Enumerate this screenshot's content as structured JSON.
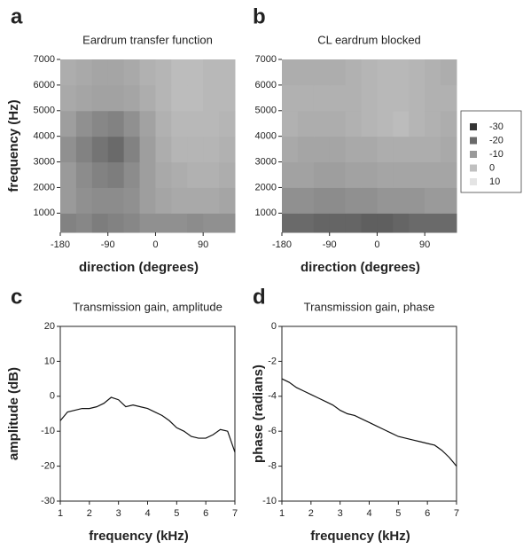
{
  "colorbar": {
    "values": [
      -30,
      -20,
      -10,
      0,
      10
    ],
    "colors": [
      "#353535",
      "#6a6a6a",
      "#9a9a9a",
      "#c0c0c0",
      "#e4e4e4"
    ]
  },
  "chart_data": [
    {
      "type": "heatmap",
      "panel_label": "a",
      "title": "Eardrum transfer function",
      "x_label": "direction (degrees)",
      "y_label": "frequency (Hz)",
      "x": [
        -165,
        -135,
        -105,
        -75,
        -45,
        -15,
        15,
        45,
        75,
        105,
        135
      ],
      "y": [
        500,
        1500,
        2500,
        3500,
        4500,
        5500,
        6500
      ],
      "values": [
        [
          -15,
          -14,
          -16,
          -15,
          -14,
          -12,
          -12,
          -12,
          -13,
          -12,
          -12
        ],
        [
          -10,
          -12,
          -13,
          -13,
          -12,
          -9,
          -7,
          -6,
          -6,
          -6,
          -7
        ],
        [
          -10,
          -13,
          -15,
          -16,
          -13,
          -9,
          -6,
          -5,
          -4,
          -4,
          -5
        ],
        [
          -12,
          -15,
          -18,
          -20,
          -15,
          -9,
          -5,
          -3,
          -3,
          -3,
          -4
        ],
        [
          -9,
          -12,
          -14,
          -15,
          -12,
          -8,
          -4,
          -2,
          -2,
          -2,
          -3
        ],
        [
          -6,
          -7,
          -8,
          -8,
          -7,
          -5,
          -3,
          -1,
          -1,
          -2,
          -2
        ],
        [
          -5,
          -6,
          -7,
          -7,
          -6,
          -4,
          -3,
          -1,
          -1,
          -2,
          -2
        ]
      ],
      "xlim": [
        -180,
        150
      ],
      "xticks": [
        -180,
        -90,
        0,
        90
      ],
      "ylim": [
        250,
        7000
      ],
      "yticks": [
        1000,
        2000,
        3000,
        4000,
        5000,
        6000,
        7000
      ]
    },
    {
      "type": "heatmap",
      "panel_label": "b",
      "title": "CL eardrum blocked",
      "x_label": "direction (degrees)",
      "x": [
        -165,
        -135,
        -105,
        -75,
        -45,
        -15,
        15,
        45,
        75,
        105,
        135
      ],
      "y": [
        500,
        1500,
        2500,
        3500,
        4500,
        5500,
        6500
      ],
      "values": [
        [
          -20,
          -20,
          -21,
          -21,
          -21,
          -22,
          -22,
          -21,
          -20,
          -20,
          -20
        ],
        [
          -12,
          -12,
          -13,
          -13,
          -12,
          -12,
          -11,
          -11,
          -11,
          -10,
          -10
        ],
        [
          -8,
          -8,
          -9,
          -9,
          -8,
          -8,
          -7,
          -7,
          -7,
          -7,
          -7
        ],
        [
          -6,
          -7,
          -7,
          -7,
          -6,
          -6,
          -5,
          -5,
          -5,
          -5,
          -6
        ],
        [
          -4,
          -5,
          -5,
          -5,
          -4,
          -3,
          -2,
          -1,
          -3,
          -4,
          -5
        ],
        [
          -4,
          -4,
          -4,
          -4,
          -4,
          -3,
          -2,
          -2,
          -3,
          -4,
          -4
        ],
        [
          -5,
          -5,
          -5,
          -5,
          -4,
          -3,
          -2,
          -2,
          -3,
          -4,
          -5
        ]
      ],
      "xlim": [
        -180,
        150
      ],
      "xticks": [
        -180,
        -90,
        0,
        90
      ],
      "ylim": [
        250,
        7000
      ],
      "yticks": [
        1000,
        2000,
        3000,
        4000,
        5000,
        6000,
        7000
      ]
    },
    {
      "type": "line",
      "panel_label": "c",
      "title": "Transmission gain, amplitude",
      "x_label": "frequency (kHz)",
      "y_label": "amplitude (dB)",
      "color": "#111111",
      "x": [
        1,
        1.25,
        1.5,
        1.75,
        2,
        2.25,
        2.5,
        2.75,
        3,
        3.25,
        3.5,
        3.75,
        4,
        4.25,
        4.5,
        4.75,
        5,
        5.25,
        5.5,
        5.75,
        6,
        6.25,
        6.5,
        6.75,
        7
      ],
      "values": [
        -7,
        -4.5,
        -4,
        -3.5,
        -3.5,
        -3,
        -2,
        -0.3,
        -1,
        -3,
        -2.5,
        -3,
        -3.5,
        -4.5,
        -5.5,
        -7,
        -9,
        -10,
        -11.5,
        -12,
        -12,
        -11,
        -9.5,
        -10,
        -16
      ],
      "xlim": [
        1,
        7
      ],
      "xticks": [
        1,
        2,
        3,
        4,
        5,
        6,
        7
      ],
      "ylim": [
        -30,
        20
      ],
      "yticks": [
        -30,
        -20,
        -10,
        0,
        10,
        20
      ]
    },
    {
      "type": "line",
      "panel_label": "d",
      "title": "Transmission gain, phase",
      "x_label": "frequency (kHz)",
      "y_label": "phase (radians)",
      "color": "#111111",
      "x": [
        1,
        1.25,
        1.5,
        1.75,
        2,
        2.25,
        2.5,
        2.75,
        3,
        3.25,
        3.5,
        3.75,
        4,
        4.25,
        4.5,
        4.75,
        5,
        5.25,
        5.5,
        5.75,
        6,
        6.25,
        6.5,
        6.75,
        7
      ],
      "values": [
        -3,
        -3.2,
        -3.5,
        -3.7,
        -3.9,
        -4.1,
        -4.3,
        -4.5,
        -4.8,
        -5,
        -5.1,
        -5.3,
        -5.5,
        -5.7,
        -5.9,
        -6.1,
        -6.3,
        -6.4,
        -6.5,
        -6.6,
        -6.7,
        -6.8,
        -7.1,
        -7.5,
        -8
      ],
      "xlim": [
        1,
        7
      ],
      "xticks": [
        1,
        2,
        3,
        4,
        5,
        6,
        7
      ],
      "ylim": [
        -10,
        0
      ],
      "yticks": [
        -10,
        -8,
        -6,
        -4,
        -2,
        0
      ]
    }
  ]
}
